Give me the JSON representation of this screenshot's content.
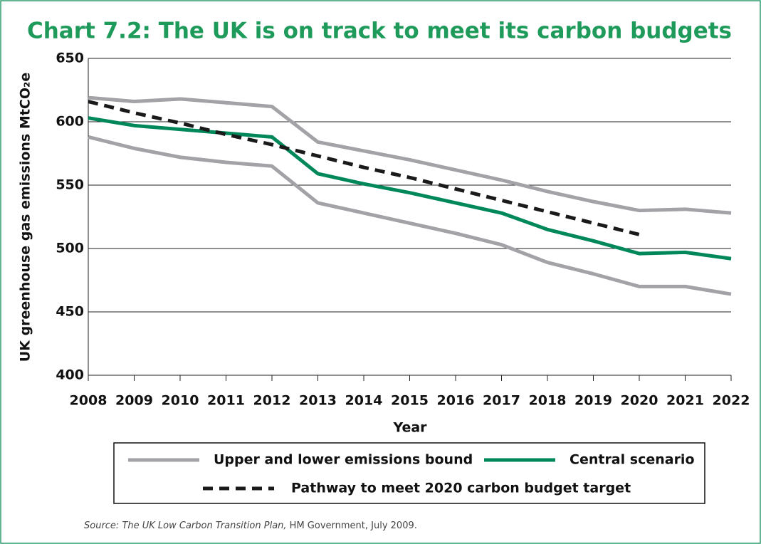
{
  "chart_data": {
    "type": "line",
    "title": "Chart 7.2: The UK is on track to meet its carbon budgets",
    "ylabel": "UK greenhouse gas emissions MtCO₂e",
    "xlabel": "Year",
    "x": [
      2008,
      2009,
      2010,
      2011,
      2012,
      2013,
      2014,
      2015,
      2016,
      2017,
      2018,
      2019,
      2020,
      2021,
      2022
    ],
    "xlim": [
      2008,
      2022
    ],
    "xticks": [
      2008,
      2009,
      2010,
      2011,
      2012,
      2013,
      2014,
      2015,
      2016,
      2017,
      2018,
      2019,
      2020,
      2021,
      2022
    ],
    "ylim": [
      400,
      650
    ],
    "yticks": [
      400,
      450,
      500,
      550,
      600,
      650
    ],
    "grid": true,
    "series": [
      {
        "name": "Upper and lower emissions bound",
        "color": "#a2a2a7",
        "upper": [
          619,
          616,
          618,
          615,
          612,
          584,
          577,
          570,
          562,
          554,
          545,
          537,
          530,
          531,
          528
        ],
        "lower": [
          588,
          579,
          572,
          568,
          565,
          536,
          528,
          520,
          512,
          503,
          489,
          480,
          470,
          470,
          464
        ]
      },
      {
        "name": "Central scenario",
        "color": "#00875a",
        "values": [
          603,
          597,
          594,
          591,
          588,
          559,
          551,
          544,
          536,
          528,
          515,
          506,
          496,
          497,
          492
        ]
      },
      {
        "name": "Pathway to meet 2020 carbon budget target",
        "color": "#1a1a1a",
        "dashed": true,
        "values": [
          616,
          607,
          599,
          590,
          582,
          573,
          564,
          556,
          547,
          538,
          529,
          520,
          511,
          null,
          null
        ]
      }
    ],
    "source": {
      "italic": "Source: The UK Low Carbon Transition Plan,",
      "text": " HM Government, July 2009."
    }
  }
}
